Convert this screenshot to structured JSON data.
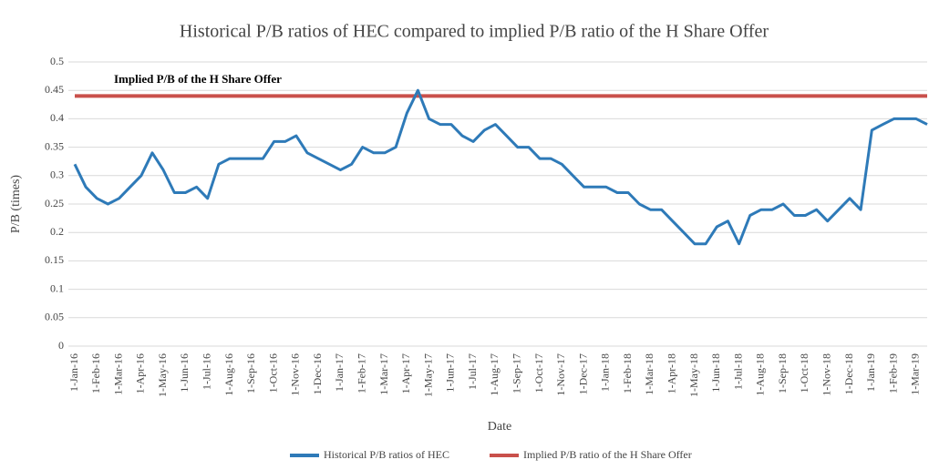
{
  "chart_data": {
    "type": "line",
    "title": "Historical  P/B ratios of HEC  compared to implied P/B ratio of the H  Share Offer",
    "x_label": "Date",
    "y_label": "P/B (times)",
    "annotation": "Implied P/B of the H Share Offer",
    "categories": [
      "1-Jan-16",
      null,
      "1-Feb-16",
      null,
      "1-Mar-16",
      null,
      "1-Apr-16",
      null,
      "1-May-16",
      null,
      "1-Jun-16",
      null,
      "1-Jul-16",
      null,
      "1-Aug-16",
      null,
      "1-Sep-16",
      null,
      "1-Oct-16",
      null,
      "1-Nov-16",
      null,
      "1-Dec-16",
      null,
      "1-Jan-17",
      null,
      "1-Feb-17",
      null,
      "1-Mar-17",
      null,
      "1-Apr-17",
      null,
      "1-May-17",
      null,
      "1-Jun-17",
      null,
      "1-Jul-17",
      null,
      "1-Aug-17",
      null,
      "1-Sep-17",
      null,
      "1-Oct-17",
      null,
      "1-Nov-17",
      null,
      "1-Dec-17",
      null,
      "1-Jan-18",
      null,
      "1-Feb-18",
      null,
      "1-Mar-18",
      null,
      "1-Apr-18",
      null,
      "1-May-18",
      null,
      "1-Jun-18",
      null,
      "1-Jul-18",
      null,
      "1-Aug-18",
      null,
      "1-Sep-18",
      null,
      "1-Oct-18",
      null,
      "1-Nov-18",
      null,
      "1-Dec-18",
      null,
      "1-Jan-19",
      null,
      "1-Feb-19",
      null,
      "1-Mar-19",
      null
    ],
    "series": [
      {
        "name": "Historical P/B ratios of HEC",
        "color": "#2e7ab8",
        "values": [
          0.32,
          0.28,
          0.26,
          0.25,
          0.26,
          0.28,
          0.3,
          0.34,
          0.31,
          0.27,
          0.27,
          0.28,
          0.26,
          0.32,
          0.33,
          0.33,
          0.33,
          0.33,
          0.36,
          0.36,
          0.37,
          0.34,
          0.33,
          0.32,
          0.31,
          0.32,
          0.35,
          0.34,
          0.34,
          0.35,
          0.41,
          0.45,
          0.4,
          0.39,
          0.39,
          0.37,
          0.36,
          0.38,
          0.39,
          0.37,
          0.35,
          0.35,
          0.33,
          0.33,
          0.32,
          0.3,
          0.28,
          0.28,
          0.28,
          0.27,
          0.27,
          0.25,
          0.24,
          0.24,
          0.22,
          0.2,
          0.18,
          0.18,
          0.21,
          0.22,
          0.18,
          0.23,
          0.24,
          0.24,
          0.25,
          0.23,
          0.23,
          0.24,
          0.22,
          0.24,
          0.26,
          0.24,
          0.38,
          0.39,
          0.4,
          0.4,
          0.4,
          0.39
        ]
      },
      {
        "name": "Implied P/B ratio of the H Share Offer",
        "color": "#c9504b",
        "values": [
          0.44,
          0.44,
          0.44,
          0.44,
          0.44,
          0.44,
          0.44,
          0.44,
          0.44,
          0.44,
          0.44,
          0.44,
          0.44,
          0.44,
          0.44,
          0.44,
          0.44,
          0.44,
          0.44,
          0.44,
          0.44,
          0.44,
          0.44,
          0.44,
          0.44,
          0.44,
          0.44,
          0.44,
          0.44,
          0.44,
          0.44,
          0.44,
          0.44,
          0.44,
          0.44,
          0.44,
          0.44,
          0.44,
          0.44,
          0.44,
          0.44,
          0.44,
          0.44,
          0.44,
          0.44,
          0.44,
          0.44,
          0.44,
          0.44,
          0.44,
          0.44,
          0.44,
          0.44,
          0.44,
          0.44,
          0.44,
          0.44,
          0.44,
          0.44,
          0.44,
          0.44,
          0.44,
          0.44,
          0.44,
          0.44,
          0.44,
          0.44,
          0.44,
          0.44,
          0.44,
          0.44,
          0.44,
          0.44,
          0.44,
          0.44,
          0.44,
          0.44,
          0.44
        ]
      }
    ],
    "ylim": [
      0,
      0.5
    ],
    "yticks": [
      0,
      0.05,
      0.1,
      0.15,
      0.2,
      0.25,
      0.3,
      0.35,
      0.4,
      0.45,
      0.5
    ],
    "grid": true,
    "legend": "bottom"
  }
}
